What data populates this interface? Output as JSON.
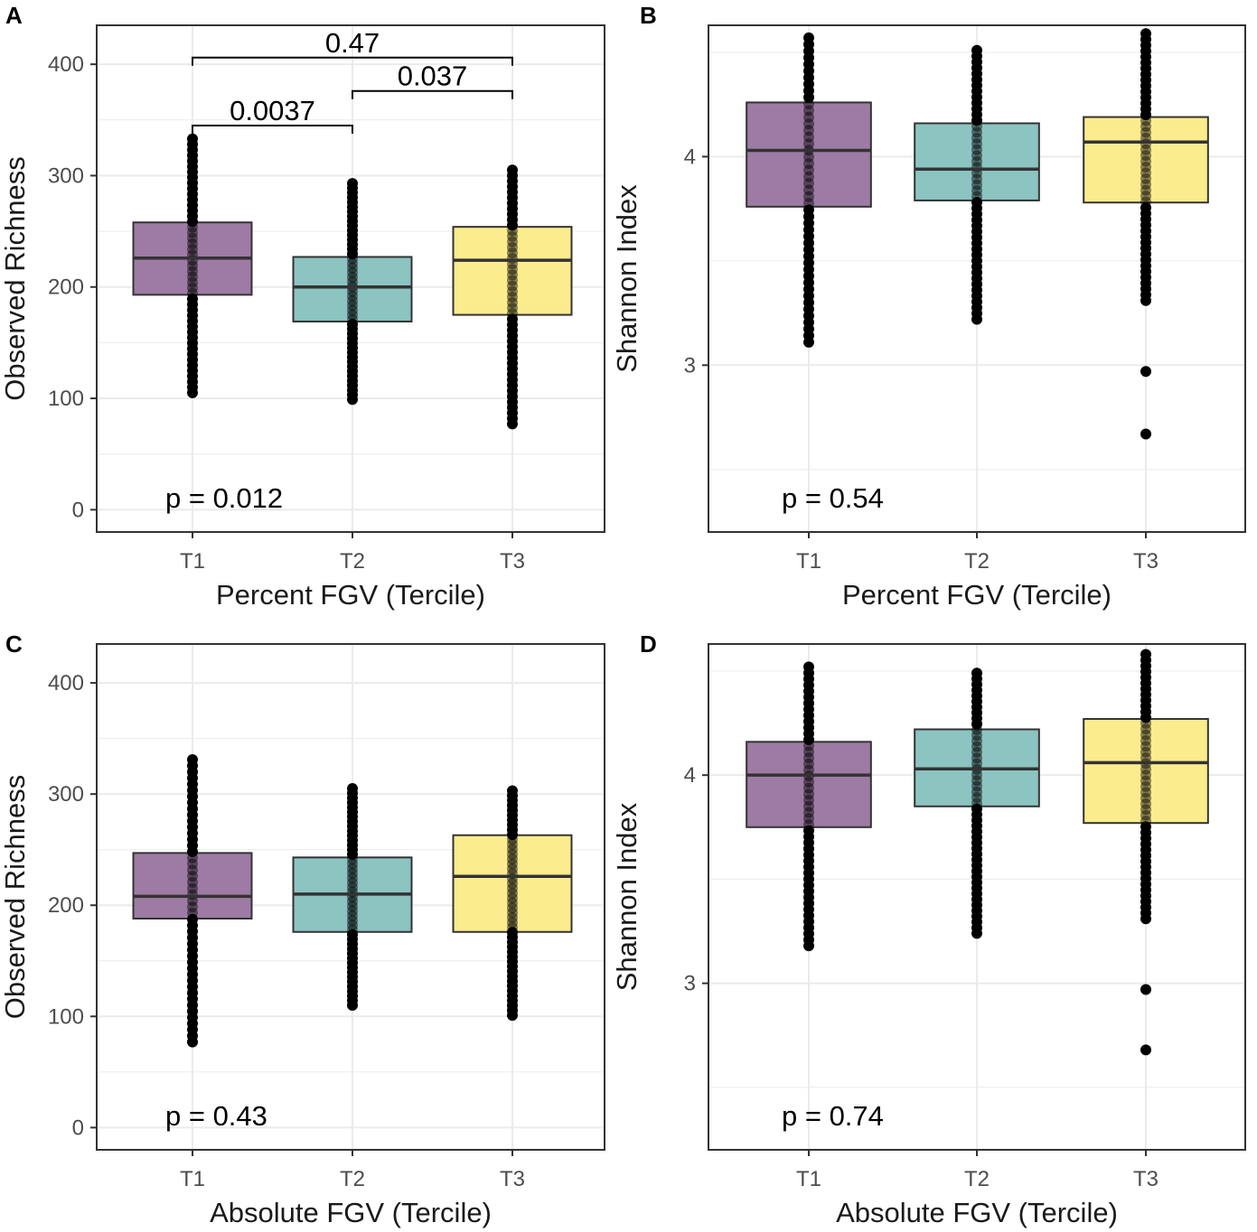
{
  "colors": {
    "T1": "#9e7ba4",
    "T2": "#8bc4c1",
    "T3": "#fbec8d",
    "grid": "#ebebeb",
    "box_stroke": "#333333",
    "point": "#000000",
    "panel_border": "#333333"
  },
  "chart_data": [
    {
      "panel": "A",
      "type": "box",
      "xlabel": "Percent FGV (Tercile)",
      "ylabel": "Observed Richness",
      "categories": [
        "T1",
        "T2",
        "T3"
      ],
      "ylim": [
        -20,
        435
      ],
      "yticks": [
        0,
        100,
        200,
        300,
        400
      ],
      "ytick_labels": [
        "0",
        "100",
        "200",
        "300",
        "400"
      ],
      "boxes": [
        {
          "name": "T1",
          "q1": 193,
          "median": 226,
          "q3": 258,
          "min": 105,
          "max": 333
        },
        {
          "name": "T2",
          "q1": 169,
          "median": 200,
          "q3": 227,
          "min": 99,
          "max": 293
        },
        {
          "name": "T3",
          "q1": 175,
          "median": 224,
          "q3": 254,
          "min": 77,
          "max": 305
        }
      ],
      "test_label": "p = 0.012",
      "brackets": [
        {
          "from": "T1",
          "to": "T3",
          "y": 406,
          "label": "0.47"
        },
        {
          "from": "T2",
          "to": "T3",
          "y": 376,
          "label": "0.037"
        },
        {
          "from": "T1",
          "to": "T2",
          "y": 345,
          "label": "0.0037"
        }
      ]
    },
    {
      "panel": "B",
      "type": "box",
      "xlabel": "Percent FGV (Tercile)",
      "ylabel": "Shannon Index",
      "categories": [
        "T1",
        "T2",
        "T3"
      ],
      "ylim": [
        2.2,
        4.63
      ],
      "yticks": [
        3,
        4
      ],
      "ytick_labels": [
        "3",
        "4"
      ],
      "boxes": [
        {
          "name": "T1",
          "q1": 3.76,
          "median": 4.03,
          "q3": 4.26,
          "min": 3.11,
          "max": 4.57
        },
        {
          "name": "T2",
          "q1": 3.79,
          "median": 3.94,
          "q3": 4.16,
          "min": 3.22,
          "max": 4.51
        },
        {
          "name": "T3",
          "q1": 3.78,
          "median": 4.07,
          "q3": 4.19,
          "min": 3.31,
          "max": 4.59,
          "outliers": [
            2.97,
            2.67
          ]
        }
      ],
      "test_label": "p = 0.54"
    },
    {
      "panel": "C",
      "type": "box",
      "xlabel": "Absolute FGV (Tercile)",
      "ylabel": "Observed Richness",
      "categories": [
        "T1",
        "T2",
        "T3"
      ],
      "ylim": [
        -20,
        435
      ],
      "yticks": [
        0,
        100,
        200,
        300,
        400
      ],
      "ytick_labels": [
        "0",
        "100",
        "200",
        "300",
        "400"
      ],
      "boxes": [
        {
          "name": "T1",
          "q1": 188,
          "median": 208,
          "q3": 247,
          "min": 77,
          "max": 331
        },
        {
          "name": "T2",
          "q1": 176,
          "median": 210,
          "q3": 243,
          "min": 110,
          "max": 305
        },
        {
          "name": "T3",
          "q1": 176,
          "median": 226,
          "q3": 263,
          "min": 101,
          "max": 303
        }
      ],
      "test_label": "p = 0.43"
    },
    {
      "panel": "D",
      "type": "box",
      "xlabel": "Absolute FGV (Tercile)",
      "ylabel": "Shannon Index",
      "categories": [
        "T1",
        "T2",
        "T3"
      ],
      "ylim": [
        2.2,
        4.63
      ],
      "yticks": [
        3,
        4
      ],
      "ytick_labels": [
        "3",
        "4"
      ],
      "boxes": [
        {
          "name": "T1",
          "q1": 3.75,
          "median": 4.0,
          "q3": 4.16,
          "min": 3.18,
          "max": 4.52
        },
        {
          "name": "T2",
          "q1": 3.85,
          "median": 4.03,
          "q3": 4.22,
          "min": 3.24,
          "max": 4.49
        },
        {
          "name": "T3",
          "q1": 3.77,
          "median": 4.06,
          "q3": 4.27,
          "min": 3.31,
          "max": 4.58,
          "outliers": [
            2.97,
            2.68
          ]
        }
      ],
      "test_label": "p = 0.74"
    }
  ]
}
